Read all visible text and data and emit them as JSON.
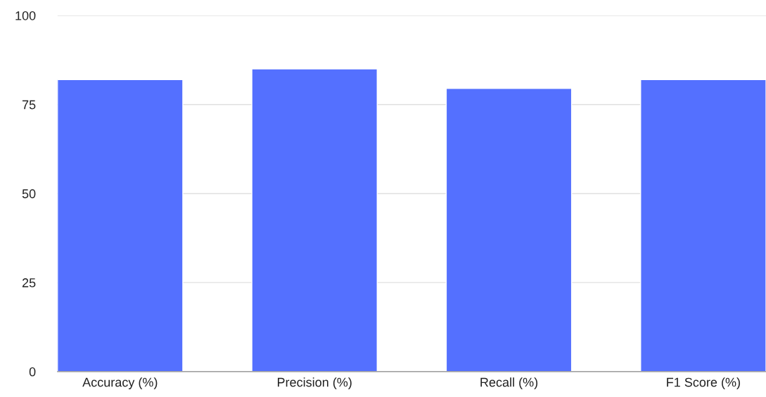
{
  "chart_data": {
    "type": "bar",
    "categories": [
      "Accuracy (%)",
      "Precision (%)",
      "Recall (%)",
      "F1 Score (%)"
    ],
    "values": [
      82,
      85,
      79.5,
      82
    ],
    "color": "#5470ff",
    "ylim": [
      0,
      100
    ],
    "yticks": [
      0,
      25,
      50,
      75,
      100
    ],
    "grid": "y",
    "legend": false
  }
}
